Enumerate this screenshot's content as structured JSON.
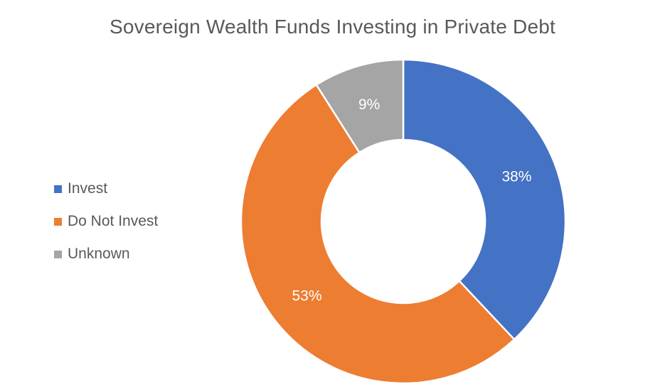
{
  "chart_data": {
    "type": "pie",
    "title": "Sovereign Wealth Funds Investing in Private Debt",
    "categories": [
      "Invest",
      "Do Not Invest",
      "Unknown"
    ],
    "values": [
      38,
      53,
      9
    ],
    "data_labels": [
      "38%",
      "53%",
      "9%"
    ],
    "colors": [
      "#4472C4",
      "#ED7D31",
      "#A5A5A5"
    ],
    "style": "donut",
    "legend_position": "left"
  }
}
